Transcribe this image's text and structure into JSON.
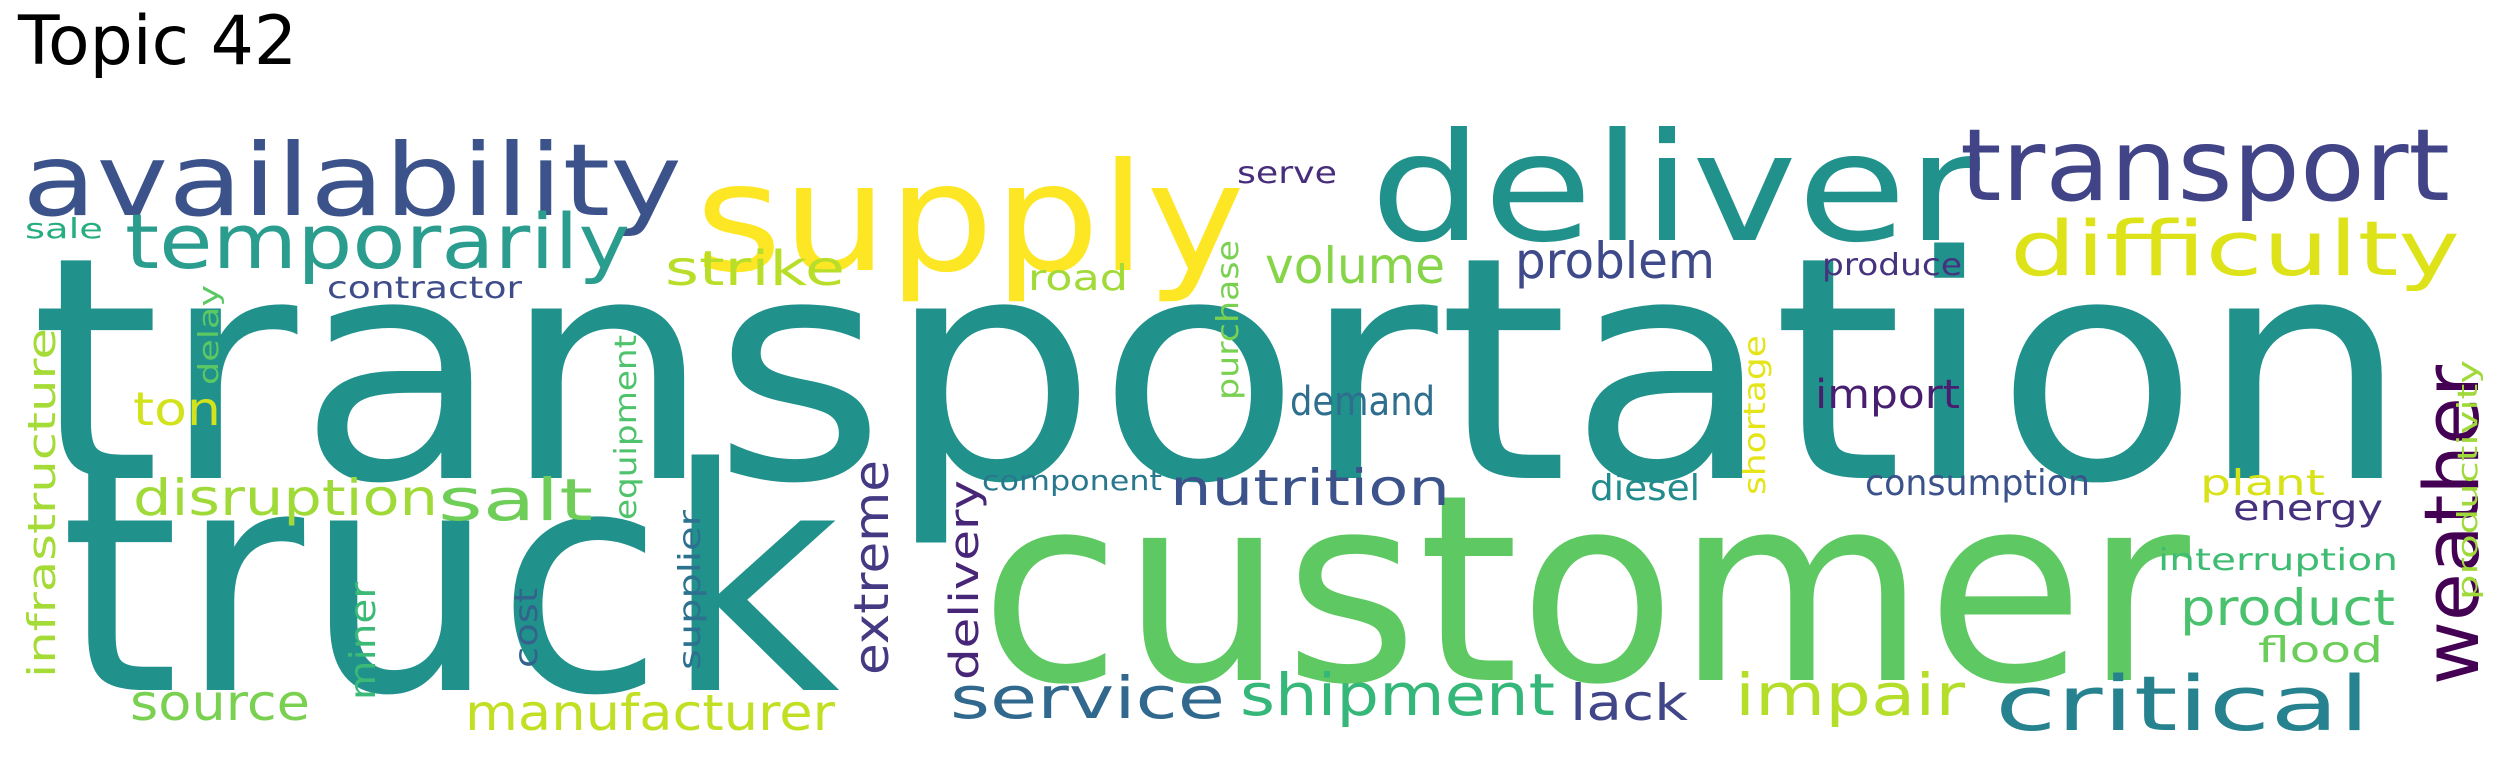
{
  "title": "Topic 42",
  "words": [
    {
      "text": "transportation",
      "color": "#21918c"
    },
    {
      "text": "customer",
      "color": "#5ec962"
    },
    {
      "text": "truck",
      "color": "#21918c"
    },
    {
      "text": "supply",
      "color": "#fde725"
    },
    {
      "text": "deliver",
      "color": "#21918c"
    },
    {
      "text": "availability",
      "color": "#3b528b"
    },
    {
      "text": "transport",
      "color": "#414487"
    },
    {
      "text": "temporarily",
      "color": "#2a9d8f"
    },
    {
      "text": "difficulty",
      "color": "#dde318"
    },
    {
      "text": "weather",
      "color": "#440154"
    },
    {
      "text": "critical",
      "color": "#26828e"
    },
    {
      "text": "service",
      "color": "#31688e"
    },
    {
      "text": "shipment",
      "color": "#35b779"
    },
    {
      "text": "impair",
      "color": "#b5de2b"
    },
    {
      "text": "manufacturer",
      "color": "#c2df23"
    },
    {
      "text": "extreme",
      "color": "#443983"
    },
    {
      "text": "salt",
      "color": "#6ece58"
    },
    {
      "text": "disruption",
      "color": "#a0da39"
    },
    {
      "text": "source",
      "color": "#7ad151"
    },
    {
      "text": "product",
      "color": "#4ac16d"
    },
    {
      "text": "nutrition",
      "color": "#3b528b"
    },
    {
      "text": "problem",
      "color": "#3e4a89"
    },
    {
      "text": "volume",
      "color": "#86d549"
    },
    {
      "text": "strike",
      "color": "#b8de29"
    },
    {
      "text": "lack",
      "color": "#404688"
    },
    {
      "text": "delivery",
      "color": "#482677"
    },
    {
      "text": "ton",
      "color": "#d2e21b"
    },
    {
      "text": "infrastructure",
      "color": "#a5db36"
    },
    {
      "text": "demand",
      "color": "#2e6e8e"
    },
    {
      "text": "import",
      "color": "#481f70"
    },
    {
      "text": "consumption",
      "color": "#3b528b"
    },
    {
      "text": "diesel",
      "color": "#228b8d"
    },
    {
      "text": "energy",
      "color": "#46317e"
    },
    {
      "text": "plant",
      "color": "#d8e219"
    },
    {
      "text": "flood",
      "color": "#6ccd5a"
    },
    {
      "text": "miner",
      "color": "#3aba76"
    },
    {
      "text": "road",
      "color": "#a2da37"
    },
    {
      "text": "purchase",
      "color": "#7ad151"
    },
    {
      "text": "supplier",
      "color": "#2c728e"
    },
    {
      "text": "cost",
      "color": "#33638d"
    },
    {
      "text": "interruption",
      "color": "#3fbc73"
    },
    {
      "text": "productivity",
      "color": "#9fda3a"
    },
    {
      "text": "equipment",
      "color": "#4ec36b"
    },
    {
      "text": "shortage",
      "color": "#e5e419"
    },
    {
      "text": "contractor",
      "color": "#3e4c8a"
    },
    {
      "text": "component",
      "color": "#2a788e"
    },
    {
      "text": "produce",
      "color": "#46327e"
    },
    {
      "text": "serve",
      "color": "#472d7b"
    },
    {
      "text": "delay",
      "color": "#5cc863"
    },
    {
      "text": "sale",
      "color": "#26ad81"
    }
  ]
}
